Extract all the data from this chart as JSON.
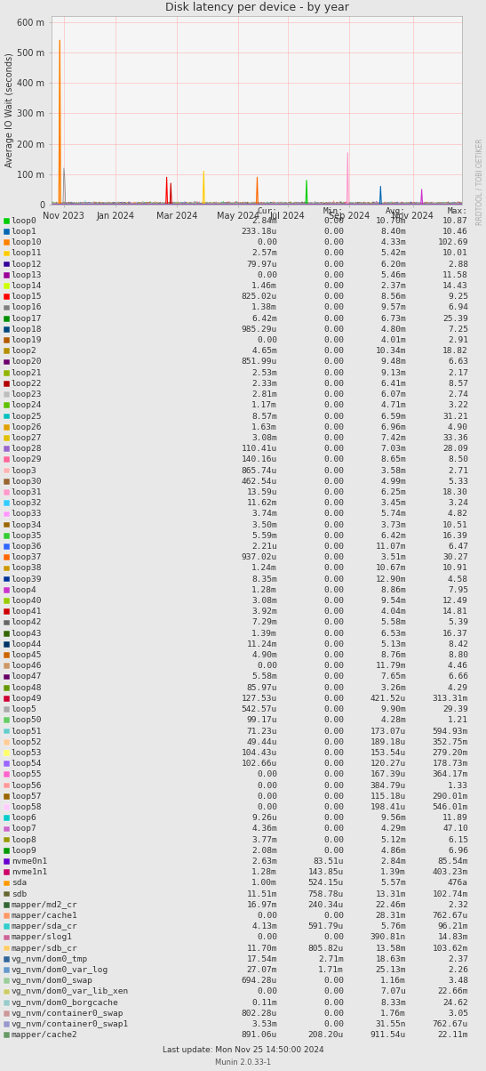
{
  "title": "Disk latency per device - by year",
  "ylabel": "Average IO Wait (seconds)",
  "watermark": "RRDTOOL / TOBI OETIKER",
  "footer": "Munin 2.0.33-1",
  "last_update": "Last update: Mon Nov 25 14:50:00 2024",
  "background_color": "#e8e8e8",
  "plot_bg_color": "#f5f5f5",
  "grid_color": "#ffaaaa",
  "ylim": [
    0,
    0.6
  ],
  "ytick_vals": [
    0,
    0.1,
    0.2,
    0.3,
    0.4,
    0.5,
    0.6
  ],
  "ytick_labels": [
    "0",
    "100 m",
    "200 m",
    "300 m",
    "400 m",
    "500 m",
    "600 m"
  ],
  "xtick_positions": [
    0.03,
    0.155,
    0.305,
    0.455,
    0.575,
    0.725,
    0.88
  ],
  "xtick_labels": [
    "Nov 2023",
    "Jan 2024",
    "Mar 2024",
    "May 2024",
    "Jul 2024",
    "Sep 2024",
    "Nov 2024"
  ],
  "legend_entries": [
    {
      "label": "loop0",
      "color": "#00cc00"
    },
    {
      "label": "loop1",
      "color": "#0066b3"
    },
    {
      "label": "loop10",
      "color": "#ff8000"
    },
    {
      "label": "loop11",
      "color": "#ffcc00"
    },
    {
      "label": "loop12",
      "color": "#330099"
    },
    {
      "label": "loop13",
      "color": "#990099"
    },
    {
      "label": "loop14",
      "color": "#ccff00"
    },
    {
      "label": "loop15",
      "color": "#ff0000"
    },
    {
      "label": "loop16",
      "color": "#808080"
    },
    {
      "label": "loop17",
      "color": "#008f00"
    },
    {
      "label": "loop18",
      "color": "#00487d"
    },
    {
      "label": "loop19",
      "color": "#b35a00"
    },
    {
      "label": "loop2",
      "color": "#b38f00"
    },
    {
      "label": "loop20",
      "color": "#6b006b"
    },
    {
      "label": "loop21",
      "color": "#8fb300"
    },
    {
      "label": "loop22",
      "color": "#b30000"
    },
    {
      "label": "loop23",
      "color": "#bebebe"
    },
    {
      "label": "loop24",
      "color": "#60bf00"
    },
    {
      "label": "loop25",
      "color": "#00bfbf"
    },
    {
      "label": "loop26",
      "color": "#e0a000"
    },
    {
      "label": "loop27",
      "color": "#e0c000"
    },
    {
      "label": "loop28",
      "color": "#9966cc"
    },
    {
      "label": "loop29",
      "color": "#ff6699"
    },
    {
      "label": "loop3",
      "color": "#ffb3b3"
    },
    {
      "label": "loop30",
      "color": "#996633"
    },
    {
      "label": "loop31",
      "color": "#ff99cc"
    },
    {
      "label": "loop32",
      "color": "#33ccff"
    },
    {
      "label": "loop33",
      "color": "#ff99ff"
    },
    {
      "label": "loop34",
      "color": "#996600"
    },
    {
      "label": "loop35",
      "color": "#33cc33"
    },
    {
      "label": "loop36",
      "color": "#3366ff"
    },
    {
      "label": "loop37",
      "color": "#ff6600"
    },
    {
      "label": "loop38",
      "color": "#cc9900"
    },
    {
      "label": "loop39",
      "color": "#003399"
    },
    {
      "label": "loop4",
      "color": "#cc33cc"
    },
    {
      "label": "loop40",
      "color": "#99cc00"
    },
    {
      "label": "loop41",
      "color": "#cc0000"
    },
    {
      "label": "loop42",
      "color": "#666666"
    },
    {
      "label": "loop43",
      "color": "#336600"
    },
    {
      "label": "loop44",
      "color": "#003366"
    },
    {
      "label": "loop45",
      "color": "#cc6600"
    },
    {
      "label": "loop46",
      "color": "#cc9966"
    },
    {
      "label": "loop47",
      "color": "#660066"
    },
    {
      "label": "loop48",
      "color": "#669900"
    },
    {
      "label": "loop49",
      "color": "#cc0033"
    },
    {
      "label": "loop5",
      "color": "#aaaaaa"
    },
    {
      "label": "loop50",
      "color": "#66cc66"
    },
    {
      "label": "loop51",
      "color": "#66cccc"
    },
    {
      "label": "loop52",
      "color": "#ffcc99"
    },
    {
      "label": "loop53",
      "color": "#ffff66"
    },
    {
      "label": "loop54",
      "color": "#9966ff"
    },
    {
      "label": "loop55",
      "color": "#ff66cc"
    },
    {
      "label": "loop56",
      "color": "#ff9999"
    },
    {
      "label": "loop57",
      "color": "#996600"
    },
    {
      "label": "loop58",
      "color": "#ffccff"
    },
    {
      "label": "loop6",
      "color": "#00cccc"
    },
    {
      "label": "loop7",
      "color": "#cc66cc"
    },
    {
      "label": "loop8",
      "color": "#999900"
    },
    {
      "label": "loop9",
      "color": "#009900"
    },
    {
      "label": "nvme0n1",
      "color": "#6600cc"
    },
    {
      "label": "nvme1n1",
      "color": "#cc0066"
    },
    {
      "label": "sda",
      "color": "#ff9900"
    },
    {
      "label": "sdb",
      "color": "#666633"
    },
    {
      "label": "mapper/md2_cr",
      "color": "#336633"
    },
    {
      "label": "mapper/cache1",
      "color": "#ff9966"
    },
    {
      "label": "mapper/sda_cr",
      "color": "#33cccc"
    },
    {
      "label": "mapper/slog1",
      "color": "#cc6699"
    },
    {
      "label": "mapper/sdb_cr",
      "color": "#ffcc66"
    },
    {
      "label": "vg_nvm/dom0_tmp",
      "color": "#336699"
    },
    {
      "label": "vg_nvm/dom0_var_log",
      "color": "#6699cc"
    },
    {
      "label": "vg_nvm/dom0_swap",
      "color": "#99cc99"
    },
    {
      "label": "vg_nvm/dom0_var_lib_xen",
      "color": "#cccc66"
    },
    {
      "label": "vg_nvm/dom0_borgcache",
      "color": "#99cccc"
    },
    {
      "label": "vg_nvm/container0_swap",
      "color": "#cc9999"
    },
    {
      "label": "vg_nvm/container0_swap1",
      "color": "#9999cc"
    },
    {
      "label": "mapper/cache2",
      "color": "#669966"
    }
  ],
  "table_data": [
    [
      "loop0",
      "2.84m",
      "0.00",
      "10.70m",
      "10.87"
    ],
    [
      "loop1",
      "233.18u",
      "0.00",
      "8.40m",
      "10.46"
    ],
    [
      "loop10",
      "0.00",
      "0.00",
      "4.33m",
      "102.69"
    ],
    [
      "loop11",
      "2.57m",
      "0.00",
      "5.42m",
      "10.01"
    ],
    [
      "loop12",
      "79.97u",
      "0.00",
      "6.20m",
      "2.88"
    ],
    [
      "loop13",
      "0.00",
      "0.00",
      "5.46m",
      "11.58"
    ],
    [
      "loop14",
      "1.46m",
      "0.00",
      "2.37m",
      "14.43"
    ],
    [
      "loop15",
      "825.02u",
      "0.00",
      "8.56m",
      "9.25"
    ],
    [
      "loop16",
      "1.38m",
      "0.00",
      "9.57m",
      "6.94"
    ],
    [
      "loop17",
      "6.42m",
      "0.00",
      "6.73m",
      "25.39"
    ],
    [
      "loop18",
      "985.29u",
      "0.00",
      "4.80m",
      "7.25"
    ],
    [
      "loop19",
      "0.00",
      "0.00",
      "4.01m",
      "2.91"
    ],
    [
      "loop2",
      "4.65m",
      "0.00",
      "10.34m",
      "18.82"
    ],
    [
      "loop20",
      "851.99u",
      "0.00",
      "9.48m",
      "6.63"
    ],
    [
      "loop21",
      "2.53m",
      "0.00",
      "9.13m",
      "2.17"
    ],
    [
      "loop22",
      "2.33m",
      "0.00",
      "6.41m",
      "8.57"
    ],
    [
      "loop23",
      "2.81m",
      "0.00",
      "6.07m",
      "2.74"
    ],
    [
      "loop24",
      "1.17m",
      "0.00",
      "4.71m",
      "3.22"
    ],
    [
      "loop25",
      "8.57m",
      "0.00",
      "6.59m",
      "31.21"
    ],
    [
      "loop26",
      "1.63m",
      "0.00",
      "6.96m",
      "4.90"
    ],
    [
      "loop27",
      "3.08m",
      "0.00",
      "7.42m",
      "33.36"
    ],
    [
      "loop28",
      "110.41u",
      "0.00",
      "7.03m",
      "28.09"
    ],
    [
      "loop29",
      "140.16u",
      "0.00",
      "8.65m",
      "8.50"
    ],
    [
      "loop3",
      "865.74u",
      "0.00",
      "3.58m",
      "2.71"
    ],
    [
      "loop30",
      "462.54u",
      "0.00",
      "4.99m",
      "5.33"
    ],
    [
      "loop31",
      "13.59u",
      "0.00",
      "6.25m",
      "18.30"
    ],
    [
      "loop32",
      "11.62m",
      "0.00",
      "3.45m",
      "3.24"
    ],
    [
      "loop33",
      "3.74m",
      "0.00",
      "5.74m",
      "4.82"
    ],
    [
      "loop34",
      "3.50m",
      "0.00",
      "3.73m",
      "10.51"
    ],
    [
      "loop35",
      "5.59m",
      "0.00",
      "6.42m",
      "16.39"
    ],
    [
      "loop36",
      "2.21u",
      "0.00",
      "11.07m",
      "6.47"
    ],
    [
      "loop37",
      "937.02u",
      "0.00",
      "3.51m",
      "30.27"
    ],
    [
      "loop38",
      "1.24m",
      "0.00",
      "10.67m",
      "10.91"
    ],
    [
      "loop39",
      "8.35m",
      "0.00",
      "12.90m",
      "4.58"
    ],
    [
      "loop4",
      "1.28m",
      "0.00",
      "8.86m",
      "7.95"
    ],
    [
      "loop40",
      "3.08m",
      "0.00",
      "9.54m",
      "12.49"
    ],
    [
      "loop41",
      "3.92m",
      "0.00",
      "4.04m",
      "14.81"
    ],
    [
      "loop42",
      "7.29m",
      "0.00",
      "5.58m",
      "5.39"
    ],
    [
      "loop43",
      "1.39m",
      "0.00",
      "6.53m",
      "16.37"
    ],
    [
      "loop44",
      "11.24m",
      "0.00",
      "5.13m",
      "8.42"
    ],
    [
      "loop45",
      "4.90m",
      "0.00",
      "8.76m",
      "8.80"
    ],
    [
      "loop46",
      "0.00",
      "0.00",
      "11.79m",
      "4.46"
    ],
    [
      "loop47",
      "5.58m",
      "0.00",
      "7.65m",
      "6.66"
    ],
    [
      "loop48",
      "85.97u",
      "0.00",
      "3.26m",
      "4.29"
    ],
    [
      "loop49",
      "127.53u",
      "0.00",
      "421.52u",
      "313.31m"
    ],
    [
      "loop5",
      "542.57u",
      "0.00",
      "9.90m",
      "29.39"
    ],
    [
      "loop50",
      "99.17u",
      "0.00",
      "4.28m",
      "1.21"
    ],
    [
      "loop51",
      "71.23u",
      "0.00",
      "173.07u",
      "594.93m"
    ],
    [
      "loop52",
      "49.44u",
      "0.00",
      "189.18u",
      "352.75m"
    ],
    [
      "loop53",
      "104.43u",
      "0.00",
      "153.54u",
      "279.20m"
    ],
    [
      "loop54",
      "102.66u",
      "0.00",
      "120.27u",
      "178.73m"
    ],
    [
      "loop55",
      "0.00",
      "0.00",
      "167.39u",
      "364.17m"
    ],
    [
      "loop56",
      "0.00",
      "0.00",
      "384.79u",
      "1.33"
    ],
    [
      "loop57",
      "0.00",
      "0.00",
      "115.18u",
      "290.01m"
    ],
    [
      "loop58",
      "0.00",
      "0.00",
      "198.41u",
      "546.01m"
    ],
    [
      "loop6",
      "9.26u",
      "0.00",
      "9.56m",
      "11.89"
    ],
    [
      "loop7",
      "4.36m",
      "0.00",
      "4.29m",
      "47.10"
    ],
    [
      "loop8",
      "3.77m",
      "0.00",
      "5.12m",
      "6.15"
    ],
    [
      "loop9",
      "2.08m",
      "0.00",
      "4.86m",
      "6.96"
    ],
    [
      "nvme0n1",
      "2.63m",
      "83.51u",
      "2.84m",
      "85.54m"
    ],
    [
      "nvme1n1",
      "1.28m",
      "143.85u",
      "1.39m",
      "403.23m"
    ],
    [
      "sda",
      "1.00m",
      "524.15u",
      "5.57m",
      "476a"
    ],
    [
      "sdb",
      "11.51m",
      "758.78u",
      "13.31m",
      "102.74m"
    ],
    [
      "mapper/md2_cr",
      "16.97m",
      "240.34u",
      "22.46m",
      "2.32"
    ],
    [
      "mapper/cache1",
      "0.00",
      "0.00",
      "28.31m",
      "762.67u"
    ],
    [
      "mapper/sda_cr",
      "4.13m",
      "591.79u",
      "5.76m",
      "96.21m"
    ],
    [
      "mapper/slog1",
      "0.00",
      "0.00",
      "390.81n",
      "14.83m"
    ],
    [
      "mapper/sdb_cr",
      "11.70m",
      "805.82u",
      "13.58m",
      "103.62m"
    ],
    [
      "vg_nvm/dom0_tmp",
      "17.54m",
      "2.71m",
      "18.63m",
      "2.37"
    ],
    [
      "vg_nvm/dom0_var_log",
      "27.07m",
      "1.71m",
      "25.13m",
      "2.26"
    ],
    [
      "vg_nvm/dom0_swap",
      "694.28u",
      "0.00",
      "1.16m",
      "3.48"
    ],
    [
      "vg_nvm/dom0_var_lib_xen",
      "0.00",
      "0.00",
      "7.07u",
      "22.66m"
    ],
    [
      "vg_nvm/dom0_borgcache",
      "0.11m",
      "0.00",
      "8.33m",
      "24.62"
    ],
    [
      "vg_nvm/container0_swap",
      "802.28u",
      "0.00",
      "1.76m",
      "3.05"
    ],
    [
      "vg_nvm/container0_swap1",
      "3.53m",
      "0.00",
      "31.55n",
      "762.67u"
    ],
    [
      "mapper/cache2",
      "891.06u",
      "208.20u",
      "911.54u",
      "22.11m"
    ]
  ]
}
